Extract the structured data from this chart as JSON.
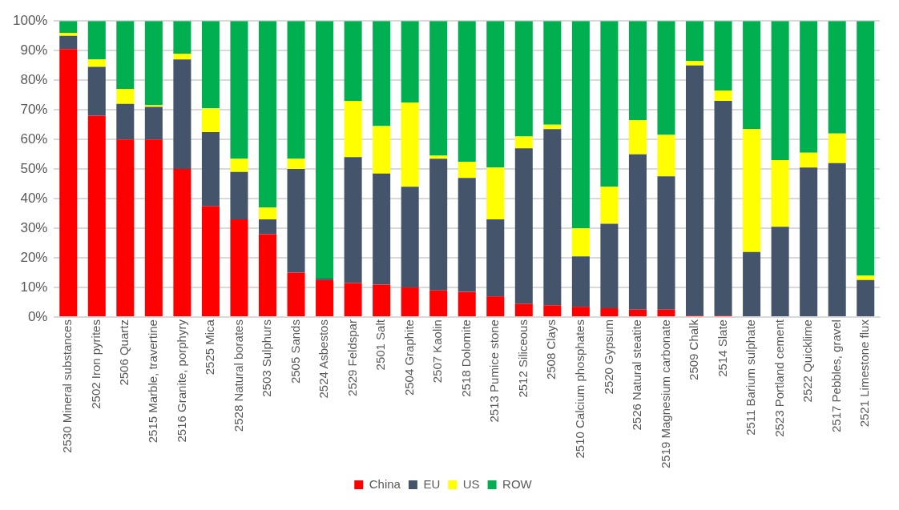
{
  "chart_data": {
    "type": "bar",
    "stacked": true,
    "categories": [
      "2530 Mineral substances",
      "2502 Iron pyrites",
      "2506 Quartz",
      "2515 Marble, travertine",
      "2516 Granite, porphyry",
      "2525 Mica",
      "2528 Natural borates",
      "2503 Sulphurs",
      "2505 Sands",
      "2524 Asbestos",
      "2529 Feldspar",
      "2501 Salt",
      "2504 Graphite",
      "2507 Kaolin",
      "2518 Dolomite",
      "2513 Pumice stone",
      "2512 Siliceous",
      "2508 Clays",
      "2510 Calcium phosphates",
      "2520 Gypsum",
      "2526 Natural steatite",
      "2519 Magnesium carbonate",
      "2509 Chalk",
      "2514 Slate",
      "2511 Barium sulphate",
      "2523 Portland cement",
      "2522 Quicklime",
      "2517 Pebbles, gravel",
      "2521 Limestone flux"
    ],
    "series": [
      {
        "name": "China",
        "color": "#ff0000",
        "values": [
          90.5,
          68,
          60,
          60,
          50,
          37.5,
          33,
          28,
          15,
          12.5,
          11.5,
          11,
          10,
          9,
          8.5,
          7,
          4.5,
          4,
          3.5,
          3,
          2.5,
          2.5,
          0.5,
          0.5,
          0,
          0,
          0,
          0,
          0
        ]
      },
      {
        "name": "EU",
        "color": "#44546a",
        "values": [
          4.5,
          16.5,
          12,
          11,
          37,
          25,
          16,
          5,
          35,
          0.5,
          42.5,
          37.5,
          34,
          44.5,
          38.5,
          26,
          52.5,
          59.5,
          17,
          28.5,
          52.5,
          45,
          84.5,
          72.5,
          22,
          30.5,
          50.5,
          52,
          12.5
        ]
      },
      {
        "name": "US",
        "color": "#ffff00",
        "values": [
          1,
          2.5,
          5,
          0.5,
          2,
          8,
          4.5,
          4,
          3.5,
          0,
          19,
          16,
          28.5,
          1,
          5.5,
          17.5,
          4,
          1.5,
          9.5,
          12.5,
          11.5,
          14,
          1.5,
          3.5,
          41.5,
          22.5,
          5,
          10,
          1.5
        ]
      },
      {
        "name": "ROW",
        "color": "#00b050",
        "values": [
          4,
          13,
          23,
          28.5,
          11,
          29.5,
          46.5,
          63,
          46.5,
          87,
          27,
          35.5,
          27.5,
          45.5,
          47.5,
          49.5,
          39,
          35,
          70,
          56,
          33.5,
          38.5,
          13.5,
          23.5,
          36.5,
          47,
          44.5,
          38,
          86
        ]
      }
    ],
    "ylim": [
      0,
      100
    ],
    "yticks": [
      {
        "value": 0,
        "label": "0%"
      },
      {
        "value": 10,
        "label": "10%"
      },
      {
        "value": 20,
        "label": "20%"
      },
      {
        "value": 30,
        "label": "30%"
      },
      {
        "value": 40,
        "label": "40%"
      },
      {
        "value": 50,
        "label": "50%"
      },
      {
        "value": 60,
        "label": "60%"
      },
      {
        "value": 70,
        "label": "70%"
      },
      {
        "value": 80,
        "label": "80%"
      },
      {
        "value": 90,
        "label": "90%"
      },
      {
        "value": 100,
        "label": "100%"
      }
    ],
    "grid": "y",
    "legend": "bottom"
  }
}
